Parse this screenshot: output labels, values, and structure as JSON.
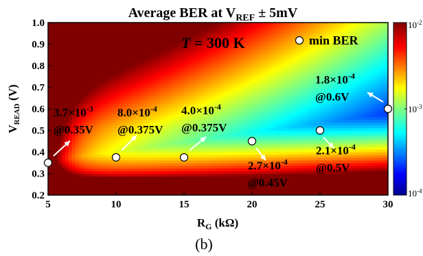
{
  "chart_data": {
    "type": "heatmap",
    "title": {
      "main": "Average BER at V",
      "sub": "REF",
      "tail": " ± 5mV"
    },
    "xlabel": {
      "main": "R",
      "sub": "G",
      "tail": " (kΩ)"
    },
    "ylabel": {
      "main": "V",
      "sub": "READ",
      "tail": " (V)"
    },
    "xlim": [
      5,
      30
    ],
    "ylim": [
      0.2,
      1.0
    ],
    "xticks": [
      "5",
      "10",
      "15",
      "20",
      "25",
      "30"
    ],
    "yticks": [
      "0.2",
      "0.3",
      "0.4",
      "0.5",
      "0.6",
      "0.7",
      "0.8",
      "0.9",
      "1.0"
    ],
    "colorbar": {
      "scale": "log",
      "range": [
        0.0001,
        0.01
      ],
      "ticks": [
        {
          "value": 0.01,
          "base": "10",
          "exp": "-2"
        },
        {
          "value": 0.001,
          "base": "10",
          "exp": "-3"
        },
        {
          "value": 0.0001,
          "base": "10",
          "exp": "-4"
        }
      ]
    },
    "temperature_label": {
      "var": "T",
      "rest": " = 300 K"
    },
    "legend": {
      "label": "min BER",
      "position": "top-right"
    },
    "min_ber_points": [
      {
        "x": 5,
        "y": 0.35,
        "ber": "3.7×10",
        "exp": "-3",
        "v": "@0.35V"
      },
      {
        "x": 10,
        "y": 0.375,
        "ber": "8.0×10",
        "exp": "-4",
        "v": "@0.375V"
      },
      {
        "x": 15,
        "y": 0.375,
        "ber": "4.0×10",
        "exp": "-4",
        "v": "@0.375V"
      },
      {
        "x": 20,
        "y": 0.45,
        "ber": "2.7×10",
        "exp": "-4",
        "v": "@0.45V"
      },
      {
        "x": 25,
        "y": 0.5,
        "ber": "2.1×10",
        "exp": "-4",
        "v": "@0.5V"
      },
      {
        "x": 30,
        "y": 0.6,
        "ber": "1.8×10",
        "exp": "-4",
        "v": "@0.6V"
      }
    ]
  },
  "caption": "(b)"
}
